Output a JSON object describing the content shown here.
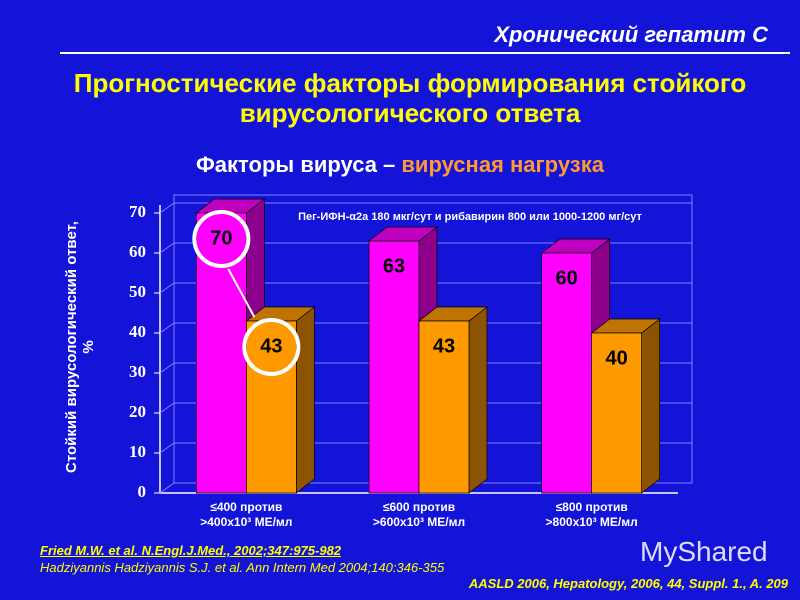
{
  "header": "Хронический гепатит С",
  "title": "Прогностические факторы формирования стойкого вирусологического ответа",
  "subtitle": {
    "part1": "Факторы вируса – ",
    "part2": "вирусная нагрузка"
  },
  "chart_data": {
    "type": "bar3d",
    "annotation": "Пег-ИФН-α2а 180 мкг/сут и рибавирин 800 или 1000-1200 мг/сут",
    "y_label": "Стойкий вирусологический ответ, %",
    "categories": [
      "≤400 против >400x10³ МЕ/мл",
      "≤600 против >600x10³ МЕ/мл",
      "≤800 против >800x10³ МЕ/мл"
    ],
    "series": [
      {
        "color": "#ff00ff",
        "values": [
          70,
          63,
          60
        ]
      },
      {
        "color": "#ff9900",
        "values": [
          43,
          43,
          40
        ]
      }
    ],
    "ylim": [
      0,
      70
    ],
    "yticks": [
      0,
      10,
      20,
      30,
      40,
      50,
      60,
      70
    ],
    "grid": true
  },
  "references": [
    "Fried M.W. et al. N.Engl.J.Med., 2002;347:975-982",
    "Hadziyannis Hadziyannis S.J. et al. Ann Intern Med 2004;140:346-355",
    "AASLD 2006, Hepatology, 2006, 44, Suppl. 1., A. 209"
  ],
  "watermark": "MyShared"
}
